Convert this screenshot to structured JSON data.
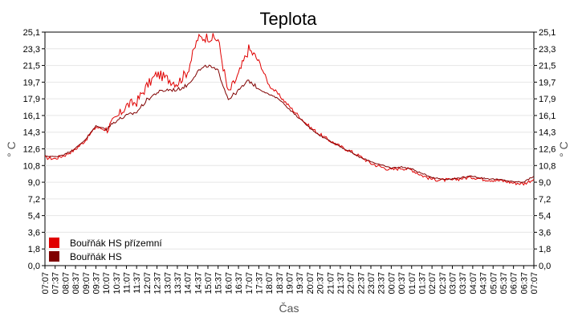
{
  "chart_data": {
    "type": "line",
    "title": "Teplota",
    "xlabel": "Čas",
    "ylabel": "° C",
    "y_ticks": [
      "0,0",
      "1,8",
      "3,6",
      "5,4",
      "7,2",
      "9,0",
      "10,8",
      "12,6",
      "14,3",
      "16,1",
      "17,9",
      "19,7",
      "21,5",
      "23,3",
      "25,1"
    ],
    "ylim": [
      0,
      25.1
    ],
    "grid": true,
    "legend_position": "bottom-left",
    "categories": [
      "07:07",
      "07:37",
      "08:07",
      "08:37",
      "09:07",
      "09:37",
      "10:07",
      "10:37",
      "11:07",
      "11:37",
      "12:07",
      "12:37",
      "13:07",
      "13:37",
      "14:07",
      "14:37",
      "15:07",
      "15:37",
      "16:07",
      "16:37",
      "17:07",
      "17:37",
      "18:07",
      "18:37",
      "19:07",
      "19:37",
      "20:07",
      "20:37",
      "21:07",
      "21:37",
      "22:07",
      "22:37",
      "23:07",
      "23:37",
      "00:07",
      "00:37",
      "01:07",
      "01:37",
      "02:07",
      "02:37",
      "03:07",
      "03:37",
      "04:07",
      "04:37",
      "05:07",
      "05:37",
      "06:07",
      "06:37",
      "07:07"
    ],
    "series": [
      {
        "name": "Bouřňák HS přízemní",
        "color": "#e00000",
        "values": [
          11.6,
          11.5,
          11.9,
          12.5,
          13.5,
          14.9,
          14.6,
          15.8,
          17.2,
          17.6,
          19.3,
          20.6,
          20.1,
          19.6,
          20.9,
          24.4,
          24.6,
          24.3,
          18.5,
          20.5,
          23.3,
          22.0,
          19.4,
          18.3,
          17.1,
          16.0,
          14.9,
          14.1,
          13.4,
          12.8,
          12.3,
          11.7,
          11.0,
          10.6,
          10.3,
          10.5,
          10.3,
          9.7,
          9.3,
          9.2,
          9.2,
          9.4,
          9.5,
          9.3,
          9.2,
          9.1,
          8.9,
          8.8,
          9.3
        ]
      },
      {
        "name": "Bouřňák HS",
        "color": "#800000",
        "values": [
          11.8,
          11.7,
          12.0,
          12.6,
          13.6,
          15.0,
          14.7,
          15.6,
          16.1,
          16.5,
          17.8,
          18.6,
          18.9,
          18.9,
          19.4,
          20.9,
          21.5,
          20.9,
          17.9,
          18.8,
          19.9,
          19.0,
          18.4,
          17.9,
          16.8,
          15.8,
          14.8,
          14.0,
          13.4,
          12.8,
          12.2,
          11.6,
          11.2,
          10.8,
          10.5,
          10.6,
          10.4,
          9.9,
          9.5,
          9.3,
          9.3,
          9.5,
          9.6,
          9.4,
          9.3,
          9.2,
          9.0,
          9.0,
          9.6
        ]
      }
    ]
  }
}
